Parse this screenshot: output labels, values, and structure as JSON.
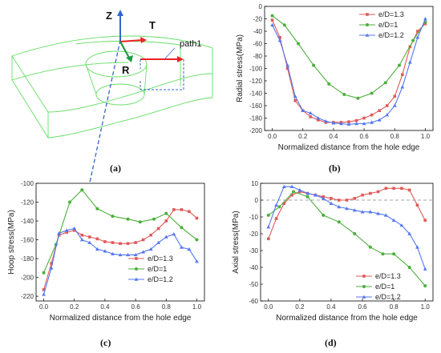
{
  "figure": {
    "panel_a": {
      "caption": "(a)",
      "axis_labels": {
        "z": "Z",
        "t": "T",
        "r": "R"
      },
      "path_label": "path1"
    }
  },
  "chart_data": [
    {
      "panel": "(b)",
      "type": "line",
      "xlabel": "Normalized distance from the hole edge",
      "ylabel": "Radial stress(MPa)",
      "xlim": [
        -0.05,
        1.05
      ],
      "ylim": [
        -200,
        0
      ],
      "xticks": [
        "0.0",
        "0.2",
        "0.4",
        "0.6",
        "0.8",
        "1.0"
      ],
      "yticks": [
        "0",
        "-20",
        "-40",
        "-60",
        "-80",
        "-100",
        "-120",
        "-140",
        "-160",
        "-180",
        "-200"
      ],
      "legend_position": "top-right",
      "series": [
        {
          "name": "e/D=1.3",
          "color": "#e05a5a",
          "marker": "square",
          "x": [
            0,
            0.05,
            0.1,
            0.15,
            0.2,
            0.25,
            0.3,
            0.35,
            0.4,
            0.45,
            0.5,
            0.55,
            0.6,
            0.65,
            0.7,
            0.75,
            0.8,
            0.85,
            0.9,
            0.95,
            1.0
          ],
          "y": [
            -22,
            -50,
            -100,
            -152,
            -168,
            -178,
            -183,
            -187,
            -187,
            -187,
            -186,
            -184,
            -180,
            -175,
            -168,
            -160,
            -145,
            -110,
            -65,
            -40,
            -28
          ]
        },
        {
          "name": "e/D=1",
          "color": "#4caf3c",
          "marker": "circle",
          "x": [
            0,
            0.08,
            0.17,
            0.27,
            0.37,
            0.47,
            0.56,
            0.65,
            0.74,
            0.83,
            0.92,
            1.0
          ],
          "y": [
            -15,
            -30,
            -60,
            -95,
            -125,
            -142,
            -148,
            -140,
            -123,
            -95,
            -55,
            -25
          ]
        },
        {
          "name": "e/D=1.2",
          "color": "#5577ee",
          "marker": "triangle",
          "x": [
            0,
            0.05,
            0.1,
            0.15,
            0.2,
            0.25,
            0.3,
            0.35,
            0.4,
            0.45,
            0.5,
            0.55,
            0.6,
            0.65,
            0.7,
            0.75,
            0.8,
            0.85,
            0.9,
            0.95,
            1.0
          ],
          "y": [
            -30,
            -55,
            -95,
            -145,
            -168,
            -172,
            -180,
            -185,
            -188,
            -189,
            -190,
            -189,
            -189,
            -187,
            -183,
            -175,
            -160,
            -130,
            -90,
            -50,
            -20
          ]
        }
      ]
    },
    {
      "panel": "(c)",
      "type": "line",
      "xlabel": "Normalized distance from the hole edge",
      "ylabel": "Hoop stress(MPa)",
      "xlim": [
        -0.05,
        1.05
      ],
      "ylim": [
        -225,
        -100
      ],
      "xticks": [
        "0.0",
        "0.2",
        "0.4",
        "0.6",
        "0.8",
        "1.0"
      ],
      "yticks": [
        "-100",
        "-120",
        "-140",
        "-160",
        "-180",
        "-200",
        "-220"
      ],
      "legend_position": "bottom-right",
      "series": [
        {
          "name": "e/D=1.3",
          "color": "#e05a5a",
          "marker": "square",
          "x": [
            0,
            0.05,
            0.1,
            0.15,
            0.2,
            0.25,
            0.3,
            0.35,
            0.4,
            0.45,
            0.5,
            0.55,
            0.6,
            0.65,
            0.7,
            0.75,
            0.8,
            0.85,
            0.9,
            0.95,
            1.0
          ],
          "y": [
            -213,
            -185,
            -155,
            -152,
            -150,
            -155,
            -157,
            -159,
            -162,
            -163,
            -164,
            -164,
            -163,
            -160,
            -155,
            -148,
            -140,
            -128,
            -128,
            -130,
            -137
          ]
        },
        {
          "name": "e/D=1",
          "color": "#4caf3c",
          "marker": "circle",
          "x": [
            0,
            0.08,
            0.17,
            0.25,
            0.35,
            0.45,
            0.55,
            0.63,
            0.72,
            0.8,
            0.9,
            1.0
          ],
          "y": [
            -195,
            -165,
            -120,
            -107,
            -127,
            -135,
            -138,
            -141,
            -138,
            -132,
            -147,
            -160
          ]
        },
        {
          "name": "e/D=1.2",
          "color": "#5577ee",
          "marker": "triangle",
          "x": [
            0,
            0.05,
            0.1,
            0.15,
            0.2,
            0.25,
            0.3,
            0.35,
            0.4,
            0.45,
            0.5,
            0.55,
            0.6,
            0.65,
            0.7,
            0.75,
            0.8,
            0.85,
            0.9,
            0.95,
            1.0
          ],
          "y": [
            -218,
            -190,
            -153,
            -150,
            -148,
            -160,
            -163,
            -170,
            -172,
            -175,
            -176,
            -176,
            -176,
            -173,
            -170,
            -163,
            -157,
            -154,
            -168,
            -170,
            -183
          ]
        }
      ]
    },
    {
      "panel": "(d)",
      "type": "line",
      "xlabel": "Normalized distance from the hole edge",
      "ylabel": "Axial stress(MPa)",
      "xlim": [
        -0.05,
        1.05
      ],
      "ylim": [
        -60,
        10
      ],
      "xticks": [
        "0.0",
        "0.2",
        "0.4",
        "0.6",
        "0.8",
        "1.0"
      ],
      "yticks": [
        "10",
        "0",
        "-10",
        "-20",
        "-30",
        "-40",
        "-50",
        "-60"
      ],
      "reference_line": 0,
      "legend_position": "bottom-right",
      "series": [
        {
          "name": "e/D=1.3",
          "color": "#e05a5a",
          "marker": "square",
          "x": [
            0,
            0.05,
            0.1,
            0.15,
            0.2,
            0.25,
            0.3,
            0.35,
            0.4,
            0.45,
            0.5,
            0.55,
            0.6,
            0.65,
            0.7,
            0.75,
            0.8,
            0.85,
            0.9,
            0.95,
            1.0
          ],
          "y": [
            -23,
            -11,
            -2,
            3,
            5,
            4,
            3,
            2,
            1,
            0,
            0,
            1,
            3,
            4,
            5,
            7,
            7,
            7,
            6,
            -3,
            -12
          ]
        },
        {
          "name": "e/D=1",
          "color": "#4caf3c",
          "marker": "circle",
          "x": [
            0,
            0.07,
            0.16,
            0.25,
            0.35,
            0.45,
            0.55,
            0.65,
            0.73,
            0.8,
            0.9,
            1.0
          ],
          "y": [
            -9,
            -4,
            5,
            2,
            -9,
            -13,
            -20,
            -28,
            -32,
            -32,
            -40,
            -51
          ]
        },
        {
          "name": "e/D=1.2",
          "color": "#5577ee",
          "marker": "triangle",
          "x": [
            0,
            0.05,
            0.1,
            0.15,
            0.2,
            0.25,
            0.3,
            0.35,
            0.4,
            0.45,
            0.5,
            0.55,
            0.6,
            0.65,
            0.7,
            0.75,
            0.8,
            0.85,
            0.9,
            0.95,
            1.0
          ],
          "y": [
            -16,
            -3,
            8,
            8,
            6,
            4,
            3,
            1,
            -2,
            -4,
            -5,
            -6,
            -7,
            -7,
            -8,
            -9,
            -12,
            -15,
            -20,
            -28,
            -41
          ]
        }
      ]
    }
  ]
}
